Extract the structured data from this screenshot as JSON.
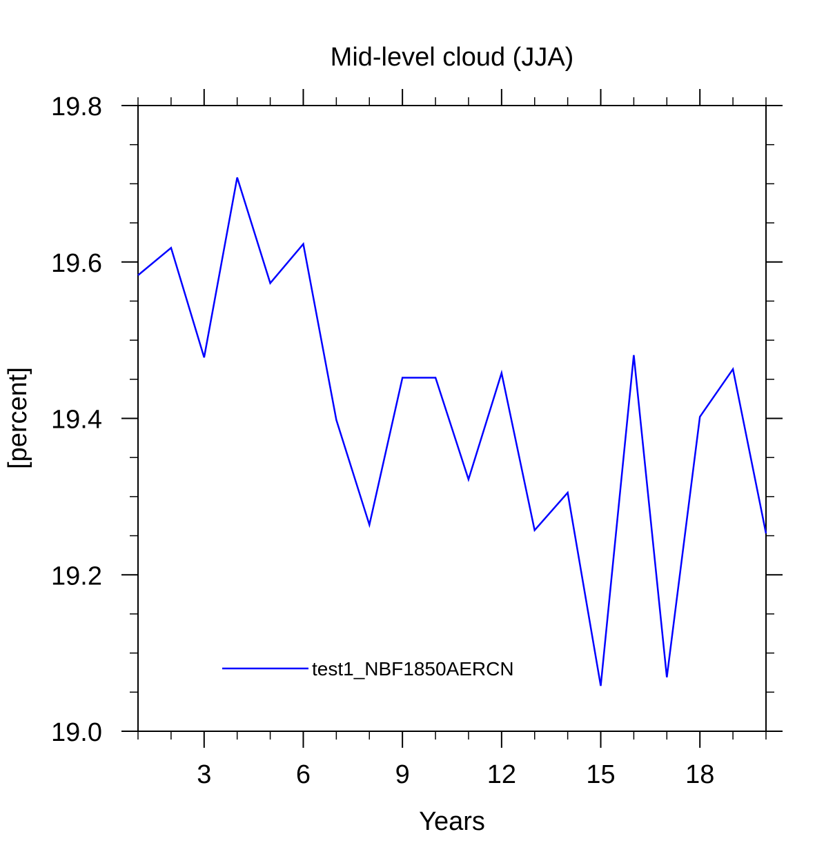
{
  "chart_data": {
    "type": "line",
    "title": "Mid-level cloud (JJA)",
    "xlabel": "Years",
    "ylabel": "[percent]",
    "xlim": [
      1,
      20
    ],
    "ylim": [
      19.0,
      19.8
    ],
    "x_major_ticks": [
      3,
      6,
      9,
      12,
      15,
      18
    ],
    "x_tick_labels": [
      "3",
      "6",
      "9",
      "12",
      "15",
      "18"
    ],
    "x_minor_step": 1,
    "y_major_ticks": [
      19.0,
      19.2,
      19.4,
      19.6,
      19.8
    ],
    "y_tick_labels": [
      "19.0",
      "19.2",
      "19.4",
      "19.6",
      "19.8"
    ],
    "y_minor_step": 0.05,
    "legend_position": "lower-left",
    "series": [
      {
        "name": "test1_NBF1850AERCN",
        "color": "#0000ff",
        "x": [
          1,
          2,
          3,
          4,
          5,
          6,
          7,
          8,
          9,
          10,
          11,
          12,
          13,
          14,
          15,
          16,
          17,
          18,
          19,
          20
        ],
        "values": [
          19.583,
          19.618,
          19.478,
          19.708,
          19.573,
          19.623,
          19.398,
          19.264,
          19.452,
          19.452,
          19.322,
          19.458,
          19.257,
          19.305,
          19.058,
          19.481,
          19.069,
          19.402,
          19.463,
          19.253
        ]
      }
    ]
  }
}
